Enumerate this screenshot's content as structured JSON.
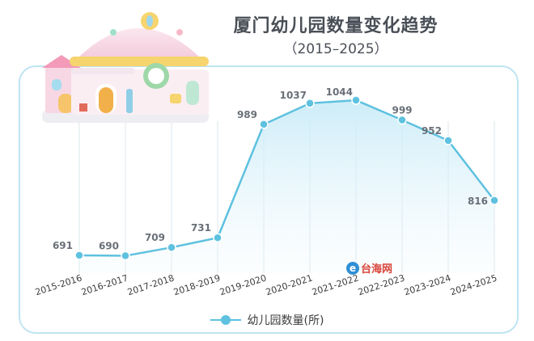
{
  "title": "厦门幼儿园数量变化趋势",
  "subtitle": "（2015–2025）",
  "watermark": {
    "brand": "台海网"
  },
  "colors": {
    "line": "#5ec1df",
    "area_top": "#c8ebf7",
    "frame": "#bfe4f2",
    "grid": "#dce7ec",
    "label": "#6a7078",
    "tick": "#3c3c3c"
  },
  "chart_data": {
    "type": "line",
    "title": "厦门幼儿园数量变化趋势",
    "subtitle": "（2015–2025）",
    "categories": [
      "2015-2016",
      "2016-2017",
      "2017-2018",
      "2018-2019",
      "2019-2020",
      "2020-2021",
      "2021-2022",
      "2022-2023",
      "2023-2024",
      "2024-2025"
    ],
    "series": [
      {
        "name": "幼儿园数量(所)",
        "values": [
          691,
          690,
          709,
          731,
          989,
          1037,
          1044,
          999,
          952,
          816
        ]
      }
    ],
    "ylim": [
      600,
      1100
    ],
    "grid": "vertical",
    "legend": "bottom-center",
    "data_labels": true
  }
}
